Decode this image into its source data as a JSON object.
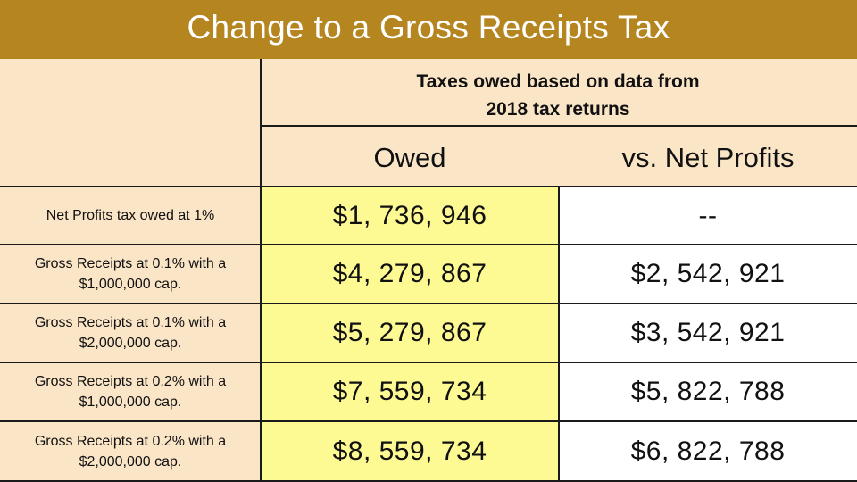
{
  "title": "Change to a Gross Receipts Tax",
  "header": {
    "caption": "Taxes owed based on data from 2018 tax returns",
    "columns": [
      "Owed",
      "vs. Net Profits"
    ]
  },
  "rows": [
    {
      "label": "Net Profits tax owed at 1%",
      "owed": "$1, 736, 946",
      "vs": "--"
    },
    {
      "label": "Gross Receipts at 0.1% with a $1,000,000 cap.",
      "owed": "$4, 279, 867",
      "vs": "$2, 542, 921"
    },
    {
      "label": "Gross Receipts at 0.1% with a $2,000,000 cap.",
      "owed": "$5, 279, 867",
      "vs": "$3, 542, 921"
    },
    {
      "label": "Gross Receipts at 0.2% with a $1,000,000 cap.",
      "owed": "$7, 559, 734",
      "vs": "$5, 822, 788"
    },
    {
      "label": "Gross Receipts at 0.2% with a $2,000,000 cap.",
      "owed": "$8, 559, 734",
      "vs": "$6, 822, 788"
    }
  ],
  "colors": {
    "title_bar": "#b5851f",
    "header_fill": "#fbe5c7",
    "owed_fill": "#fdfa93",
    "row_label_fill": "#fbe5c7"
  }
}
